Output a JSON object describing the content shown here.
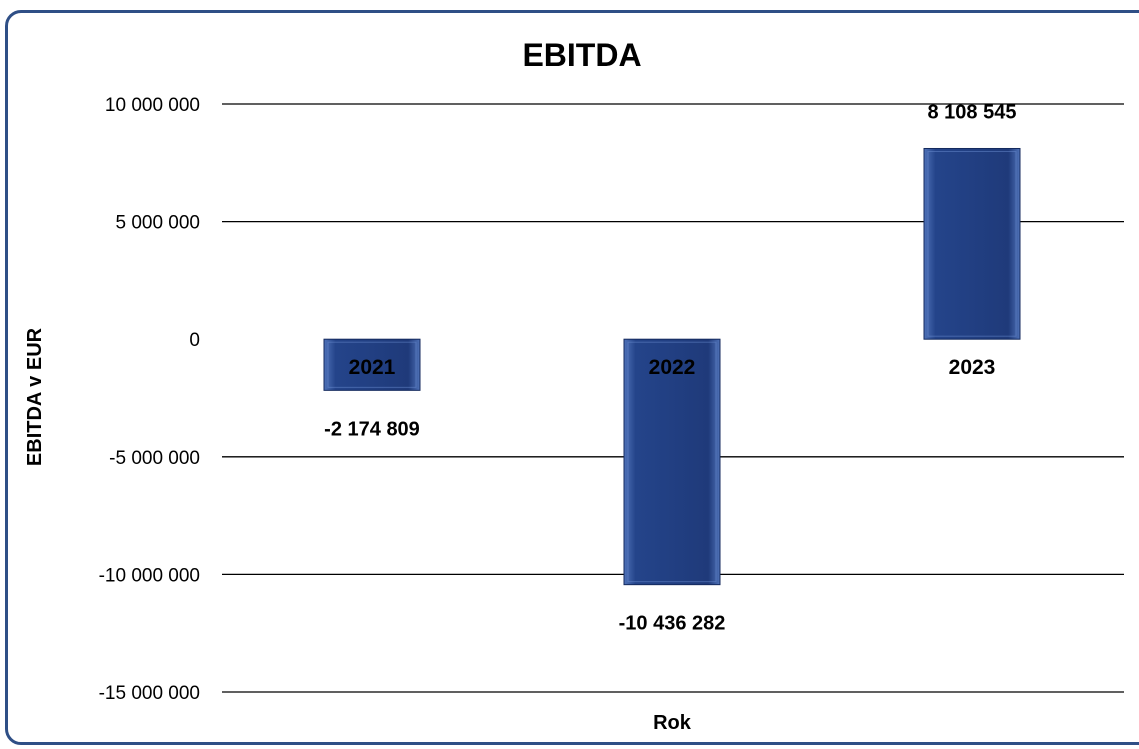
{
  "chart_data": {
    "type": "bar",
    "title": "EBITDA",
    "xlabel": "Rok",
    "ylabel": "EBITDA v EUR",
    "categories": [
      "2021",
      "2022",
      "2023"
    ],
    "values": [
      -2174809,
      -10436282,
      8108545
    ],
    "value_labels": [
      "-2 174 809",
      "-10 436 282",
      "8 108 545"
    ],
    "ylim": [
      -15000000,
      10000000
    ],
    "y_ticks": [
      10000000,
      5000000,
      0,
      -5000000,
      -10000000,
      -15000000
    ],
    "y_tick_labels": [
      "10 000 000",
      "5 000 000",
      "0",
      "-5 000 000",
      "-10 000 000",
      "-15 000 000"
    ],
    "grid": true,
    "legend": "none",
    "colors": {
      "bar": "#1f3a7a",
      "bar_highlight": "#4f72b8",
      "frame": "#2f4f86",
      "gridline": "#000000",
      "text": "#000000"
    }
  }
}
